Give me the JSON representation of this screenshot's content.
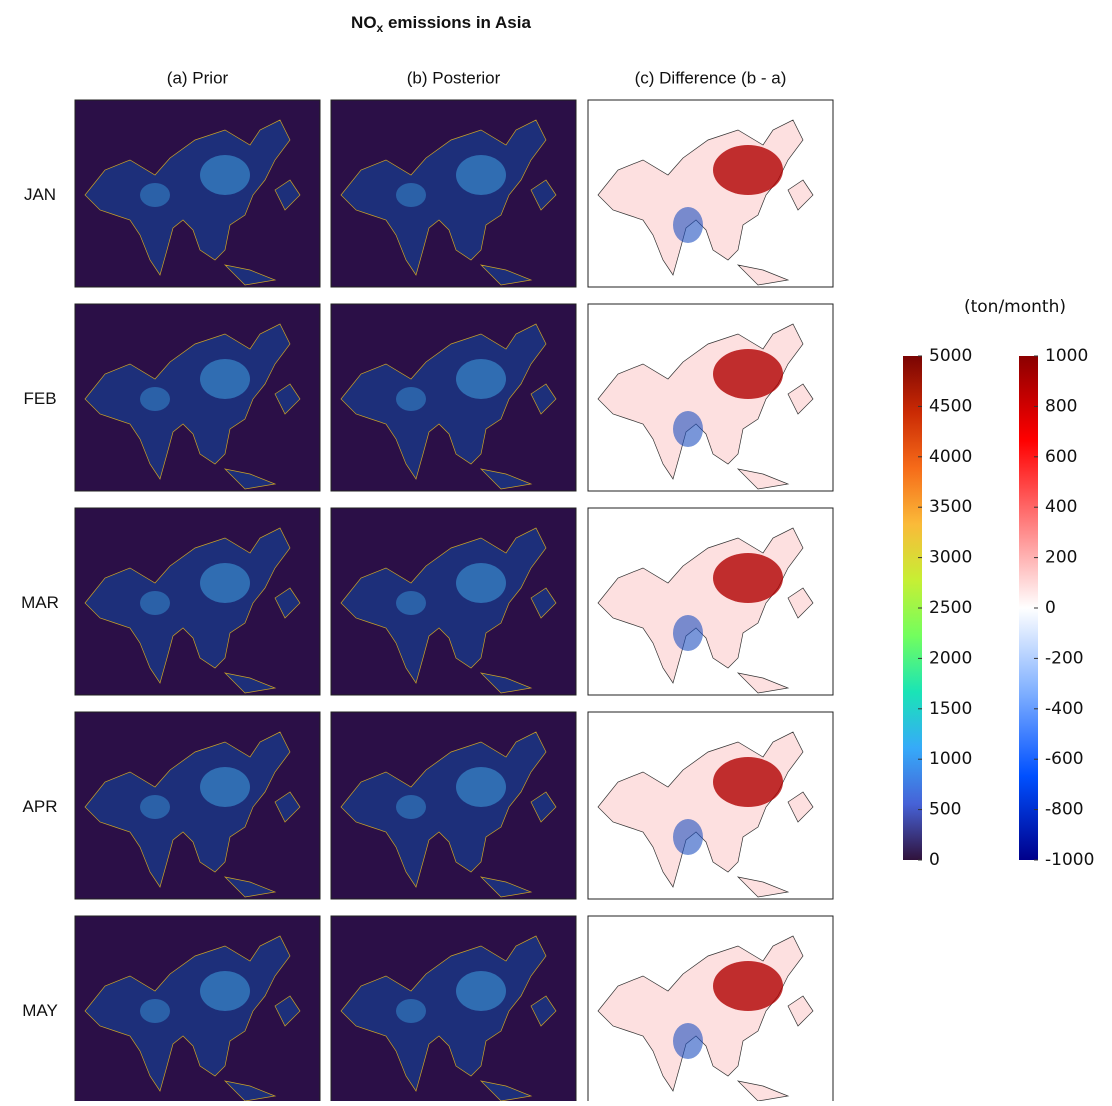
{
  "title": {
    "main": "NO",
    "subscript": "x",
    "rest": " emissions in Asia"
  },
  "columns": [
    "(a) Prior",
    "(b) Posterior",
    "(c) Difference (b - a)"
  ],
  "rows": [
    "JAN",
    "FEB",
    "MAR",
    "APR",
    "MAY"
  ],
  "unit": "(ton/month)",
  "colorbars": [
    {
      "lim": [
        0,
        5000
      ],
      "ticks": [
        0,
        500,
        1000,
        1500,
        2000,
        2500,
        3000,
        3500,
        4000,
        4500,
        5000
      ],
      "colors": [
        "#30123b",
        "#4662d7",
        "#36aaf9",
        "#1ae4b6",
        "#72fe5e",
        "#c7ef34",
        "#faba39",
        "#f66b19",
        "#ca2a04",
        "#7a0403"
      ]
    },
    {
      "lim": [
        -1000,
        1000
      ],
      "ticks": [
        -1000,
        -800,
        -600,
        -400,
        -200,
        0,
        200,
        400,
        600,
        800,
        1000
      ],
      "colors": [
        "#00008b",
        "#0050ff",
        "#80b0ff",
        "#ffffff",
        "#ff8080",
        "#ff0000",
        "#8b0000"
      ]
    }
  ]
}
